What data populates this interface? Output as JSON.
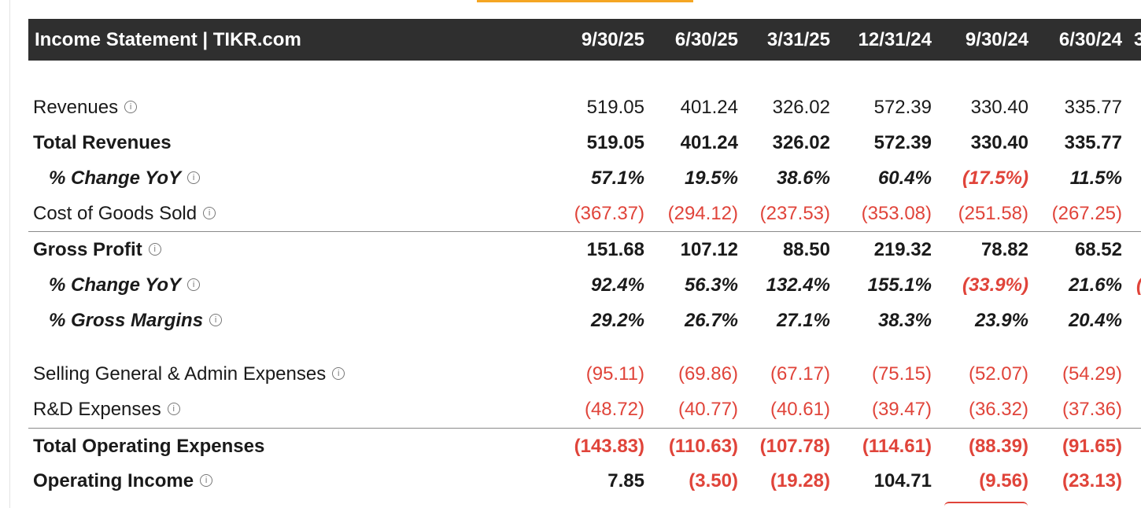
{
  "header": {
    "title": "Income Statement | TIKR.com",
    "periods": [
      "9/30/25",
      "6/30/25",
      "3/31/25",
      "12/31/24",
      "9/30/24",
      "6/30/24"
    ]
  },
  "info_icon_glyph": "i",
  "colors": {
    "negative": "#e0443a",
    "header_bg": "#2f2f2f",
    "accent_tab": "#f5a623"
  },
  "rows": [
    {
      "label": "Revenues",
      "values": [
        "519.05",
        "401.24",
        "326.02",
        "572.39",
        "330.40",
        "335.77"
      ]
    },
    {
      "label": "Total Revenues",
      "values": [
        "519.05",
        "401.24",
        "326.02",
        "572.39",
        "330.40",
        "335.77"
      ]
    },
    {
      "label": "% Change YoY",
      "values": [
        "57.1%",
        "19.5%",
        "38.6%",
        "60.4%",
        "(17.5%)",
        "11.5%"
      ]
    },
    {
      "label": "Cost of Goods Sold",
      "values": [
        "(367.37)",
        "(294.12)",
        "(237.53)",
        "(353.08)",
        "(251.58)",
        "(267.25)"
      ]
    },
    {
      "label": "Gross Profit",
      "values": [
        "151.68",
        "107.12",
        "88.50",
        "219.32",
        "78.82",
        "68.52"
      ]
    },
    {
      "label": "% Change YoY",
      "values": [
        "92.4%",
        "56.3%",
        "132.4%",
        "155.1%",
        "(33.9%)",
        "21.6%"
      ]
    },
    {
      "label": "% Gross Margins",
      "values": [
        "29.2%",
        "26.7%",
        "27.1%",
        "38.3%",
        "23.9%",
        "20.4%"
      ]
    },
    {
      "label": "Selling General & Admin Expenses",
      "values": [
        "(95.11)",
        "(69.86)",
        "(67.17)",
        "(75.15)",
        "(52.07)",
        "(54.29)"
      ]
    },
    {
      "label": "R&D Expenses",
      "values": [
        "(48.72)",
        "(40.77)",
        "(40.61)",
        "(39.47)",
        "(36.32)",
        "(37.36)"
      ]
    },
    {
      "label": "Total Operating Expenses",
      "values": [
        "(143.83)",
        "(110.63)",
        "(107.78)",
        "(114.61)",
        "(88.39)",
        "(91.65)"
      ]
    },
    {
      "label": "Operating Income",
      "values": [
        "7.85",
        "(3.50)",
        "(19.28)",
        "104.71",
        "(9.56)",
        "(23.13)"
      ]
    }
  ]
}
